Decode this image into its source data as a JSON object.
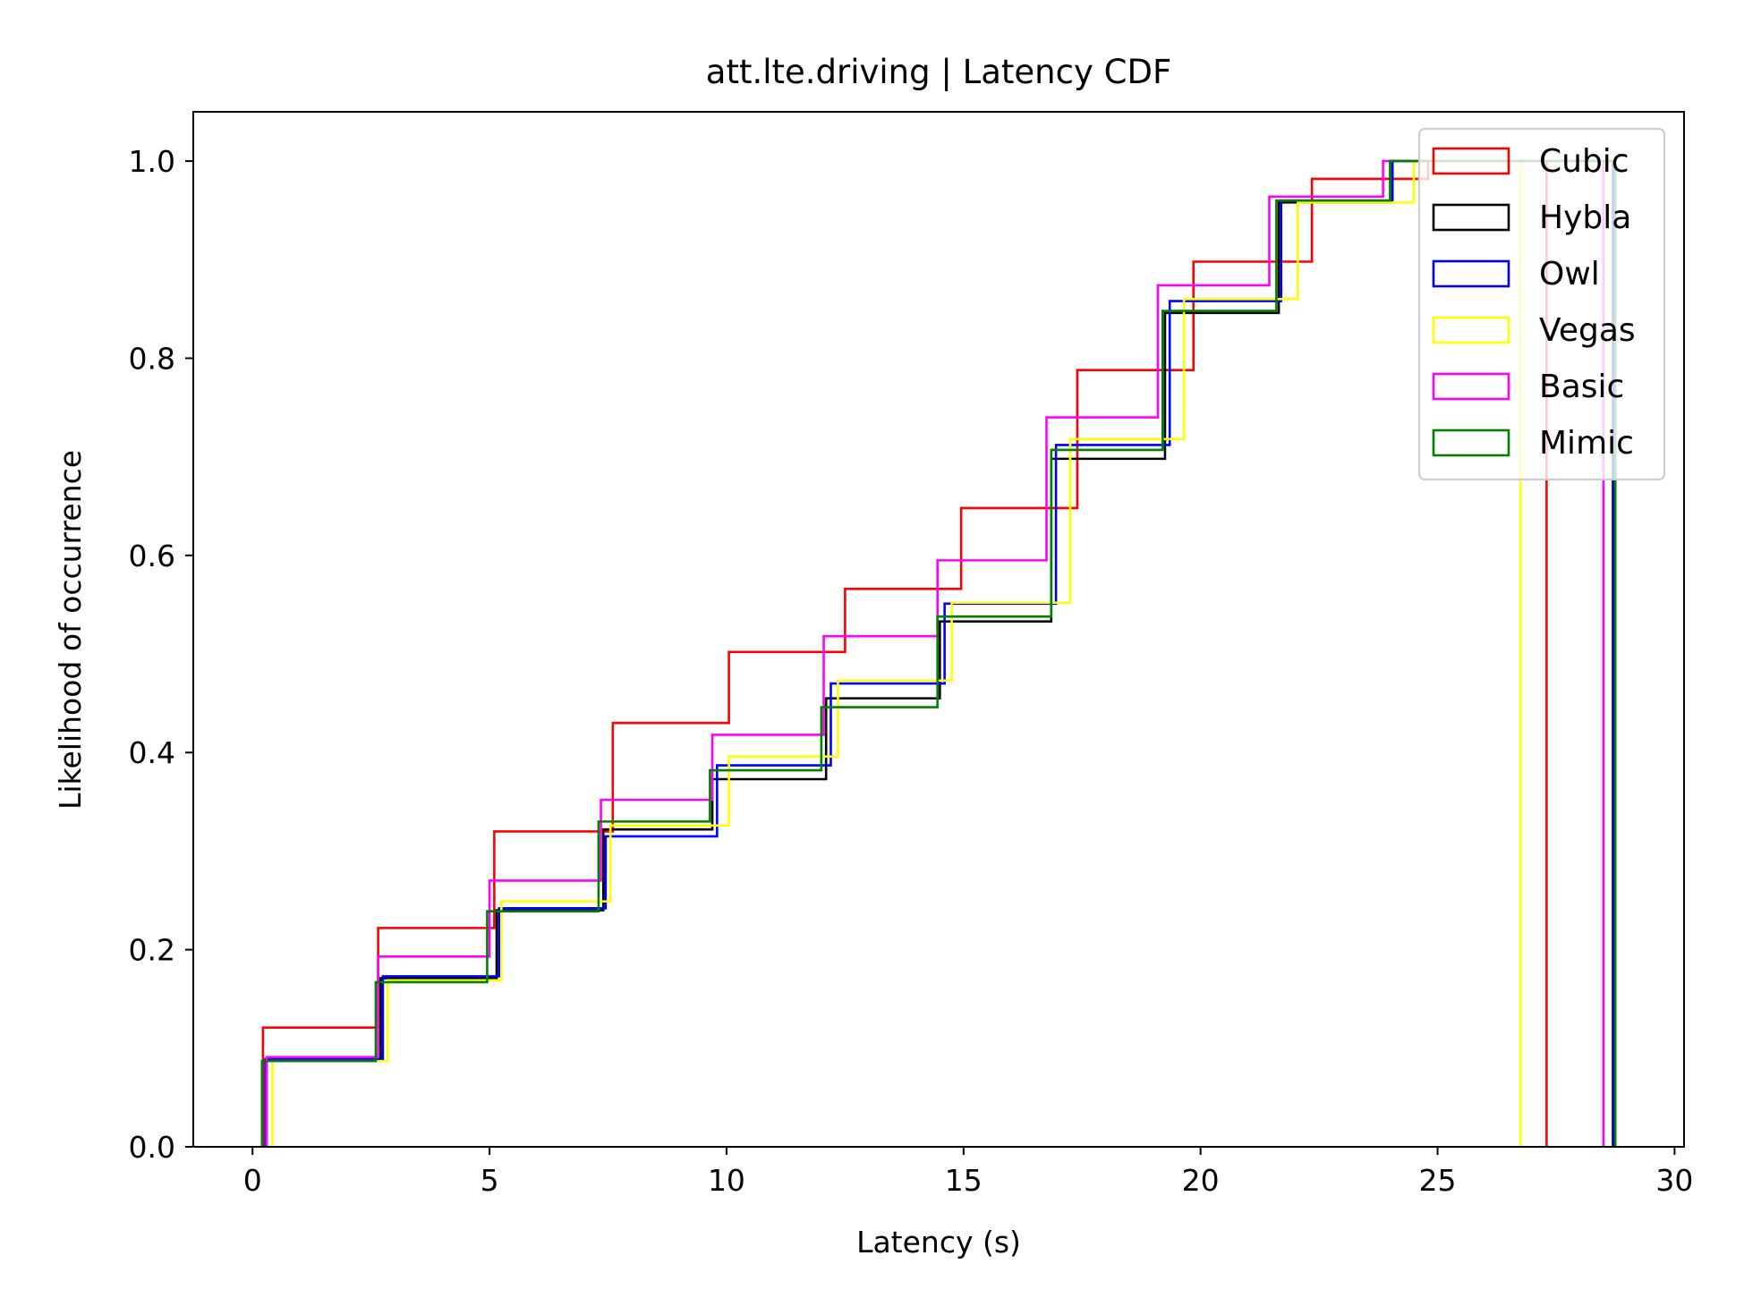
{
  "chart_data": {
    "type": "line",
    "title": "att.lte.driving | Latency CDF",
    "xlabel": "Latency (s)",
    "ylabel": "Likelihood of occurrence",
    "xlim": [
      -1.25,
      30.2
    ],
    "ylim": [
      0.0,
      1.05
    ],
    "xticks": [
      0,
      5,
      10,
      15,
      20,
      25,
      30
    ],
    "yticks": [
      0.0,
      0.2,
      0.4,
      0.6,
      0.8,
      1.0
    ],
    "xtick_labels": [
      "0",
      "5",
      "10",
      "15",
      "20",
      "25",
      "30"
    ],
    "ytick_labels": [
      "0.0",
      "0.2",
      "0.4",
      "0.6",
      "0.8",
      "1.0"
    ],
    "grid": false,
    "legend_position": "top-right",
    "step_style": "histogram step (cumulative, drops to 0 at final edge)",
    "series": [
      {
        "name": "Cubic",
        "color": "#ff0000",
        "edges": [
          0.22,
          2.65,
          5.1,
          7.6,
          10.05,
          12.5,
          14.95,
          17.4,
          19.85,
          22.35,
          24.8,
          27.3
        ],
        "values": [
          0.121,
          0.222,
          0.32,
          0.43,
          0.502,
          0.566,
          0.648,
          0.788,
          0.898,
          0.982,
          1.0
        ]
      },
      {
        "name": "Hybla",
        "color": "#000000",
        "edges": [
          0.28,
          2.7,
          5.15,
          7.4,
          9.7,
          12.1,
          14.5,
          16.85,
          19.25,
          21.65,
          24.0,
          28.7
        ],
        "values": [
          0.088,
          0.171,
          0.24,
          0.322,
          0.373,
          0.455,
          0.533,
          0.698,
          0.846,
          0.958,
          1.0
        ]
      },
      {
        "name": "Owl",
        "color": "#0000ff",
        "edges": [
          0.27,
          2.75,
          5.2,
          7.45,
          9.8,
          12.2,
          14.6,
          16.95,
          19.35,
          21.7,
          24.05,
          28.72
        ],
        "values": [
          0.089,
          0.173,
          0.242,
          0.315,
          0.387,
          0.47,
          0.551,
          0.712,
          0.858,
          0.96,
          1.0
        ]
      },
      {
        "name": "Vegas",
        "color": "#ffff00",
        "edges": [
          0.42,
          2.85,
          5.25,
          7.55,
          10.05,
          12.35,
          14.75,
          17.25,
          19.65,
          22.05,
          24.5,
          26.75
        ],
        "values": [
          0.087,
          0.169,
          0.249,
          0.326,
          0.396,
          0.473,
          0.552,
          0.718,
          0.86,
          0.958,
          1.0
        ]
      },
      {
        "name": "Basic",
        "color": "#ff00ff",
        "edges": [
          0.3,
          2.65,
          5.0,
          7.35,
          9.7,
          12.05,
          14.45,
          16.75,
          19.1,
          21.45,
          23.85,
          28.5
        ],
        "values": [
          0.091,
          0.193,
          0.27,
          0.352,
          0.418,
          0.518,
          0.595,
          0.74,
          0.874,
          0.964,
          1.0
        ]
      },
      {
        "name": "Mimic",
        "color": "#008000",
        "edges": [
          0.2,
          2.6,
          4.95,
          7.3,
          9.65,
          12.0,
          14.45,
          16.85,
          19.2,
          21.6,
          24.0,
          28.75
        ],
        "values": [
          0.087,
          0.167,
          0.239,
          0.33,
          0.382,
          0.446,
          0.538,
          0.707,
          0.848,
          0.96,
          1.0
        ]
      }
    ]
  }
}
